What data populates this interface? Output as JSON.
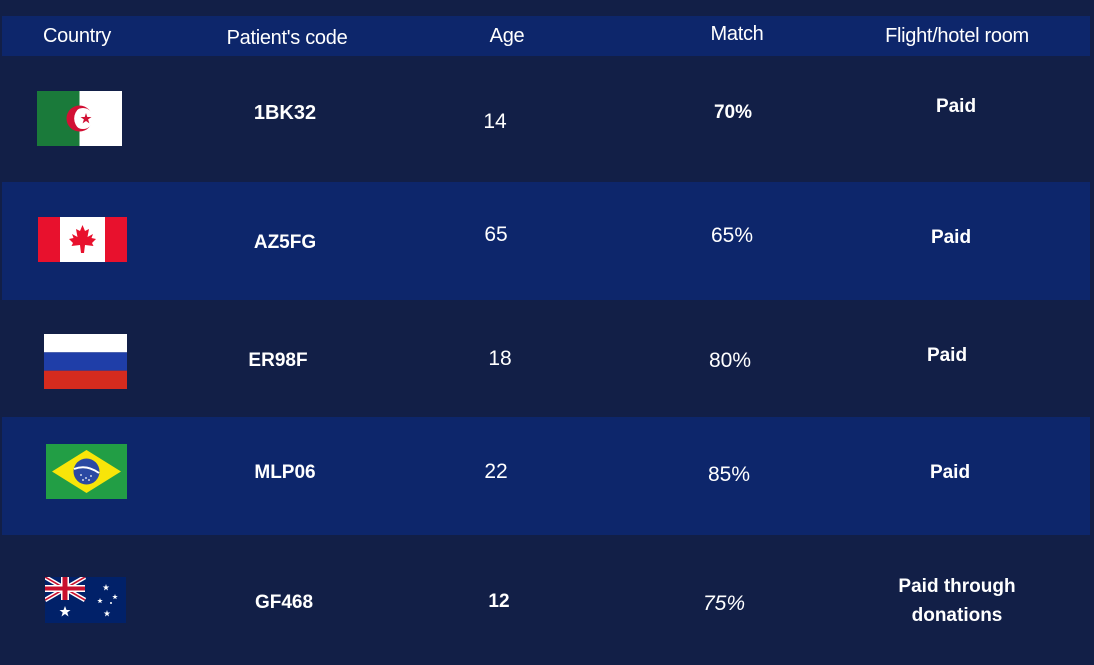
{
  "table": {
    "headers": {
      "country": "Country",
      "code": "Patient's code",
      "age": "Age",
      "match": "Match",
      "flight": "Flight/hotel room"
    },
    "rows": [
      {
        "country_icon": "algeria-flag-icon",
        "code": "1BK32",
        "age": "14",
        "match": "70%",
        "flight": "Paid"
      },
      {
        "country_icon": "canada-flag-icon",
        "code": "AZ5FG",
        "age": "65",
        "match": "65%",
        "flight": "Paid"
      },
      {
        "country_icon": "russia-flag-icon",
        "code": "ER98F",
        "age": "18",
        "match": "80%",
        "flight": "Paid"
      },
      {
        "country_icon": "brazil-flag-icon",
        "code": "MLP06",
        "age": "22",
        "match": "85%",
        "flight": "Paid"
      },
      {
        "country_icon": "australia-flag-icon",
        "code": "GF468",
        "age": "12",
        "match": "75%",
        "flight_line1": "Paid through",
        "flight_line2": "donations"
      }
    ]
  },
  "colors": {
    "background": "#121f47",
    "header_band": "#0d266b",
    "row_light": "#0d266b",
    "text": "#ffffff"
  }
}
